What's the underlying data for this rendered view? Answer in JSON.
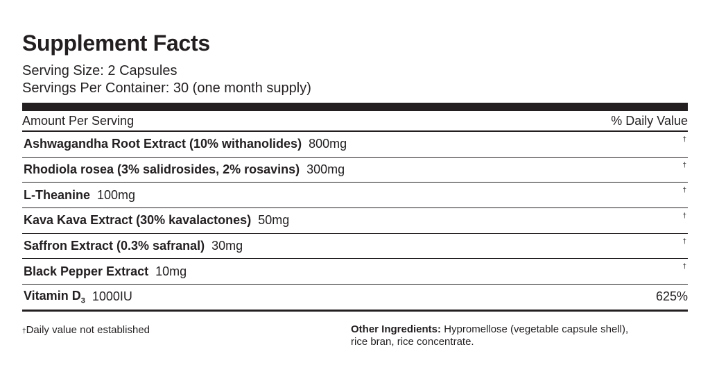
{
  "title": "Supplement Facts",
  "serving_size": "Serving Size: 2 Capsules",
  "servings_per_container": "Servings Per Container: 30 (one month supply)",
  "table": {
    "header": [
      "Amount Per Serving",
      "% Daily Value"
    ],
    "rows": [
      {
        "name": "Ashwagandha Root Extract (10% withanolides)",
        "amount": "800mg",
        "daily_value": "†"
      },
      {
        "name": "Rhodiola rosea (3% salidrosides, 2% rosavins)",
        "amount": "300mg",
        "daily_value": "†"
      },
      {
        "name": "L-Theanine",
        "amount": "100mg",
        "daily_value": "†"
      },
      {
        "name": "Kava Kava Extract (30% kavalactones)",
        "amount": "50mg",
        "daily_value": "†"
      },
      {
        "name": "Saffron Extract (0.3% safranal)",
        "amount": "30mg",
        "daily_value": "†"
      },
      {
        "name": "Black Pepper Extract",
        "amount": "10mg",
        "daily_value": "†"
      },
      {
        "name": "Vitamin D",
        "subscript": "3",
        "amount": "1000IU",
        "daily_value": "625%"
      }
    ]
  },
  "footnote": {
    "symbol": "†",
    "text": "Daily value not established"
  },
  "other_ingredients": {
    "label": "Other Ingredients:",
    "lines": [
      "Hypromellose (vegetable capsule shell),",
      "rice bran, rice concentrate."
    ]
  }
}
